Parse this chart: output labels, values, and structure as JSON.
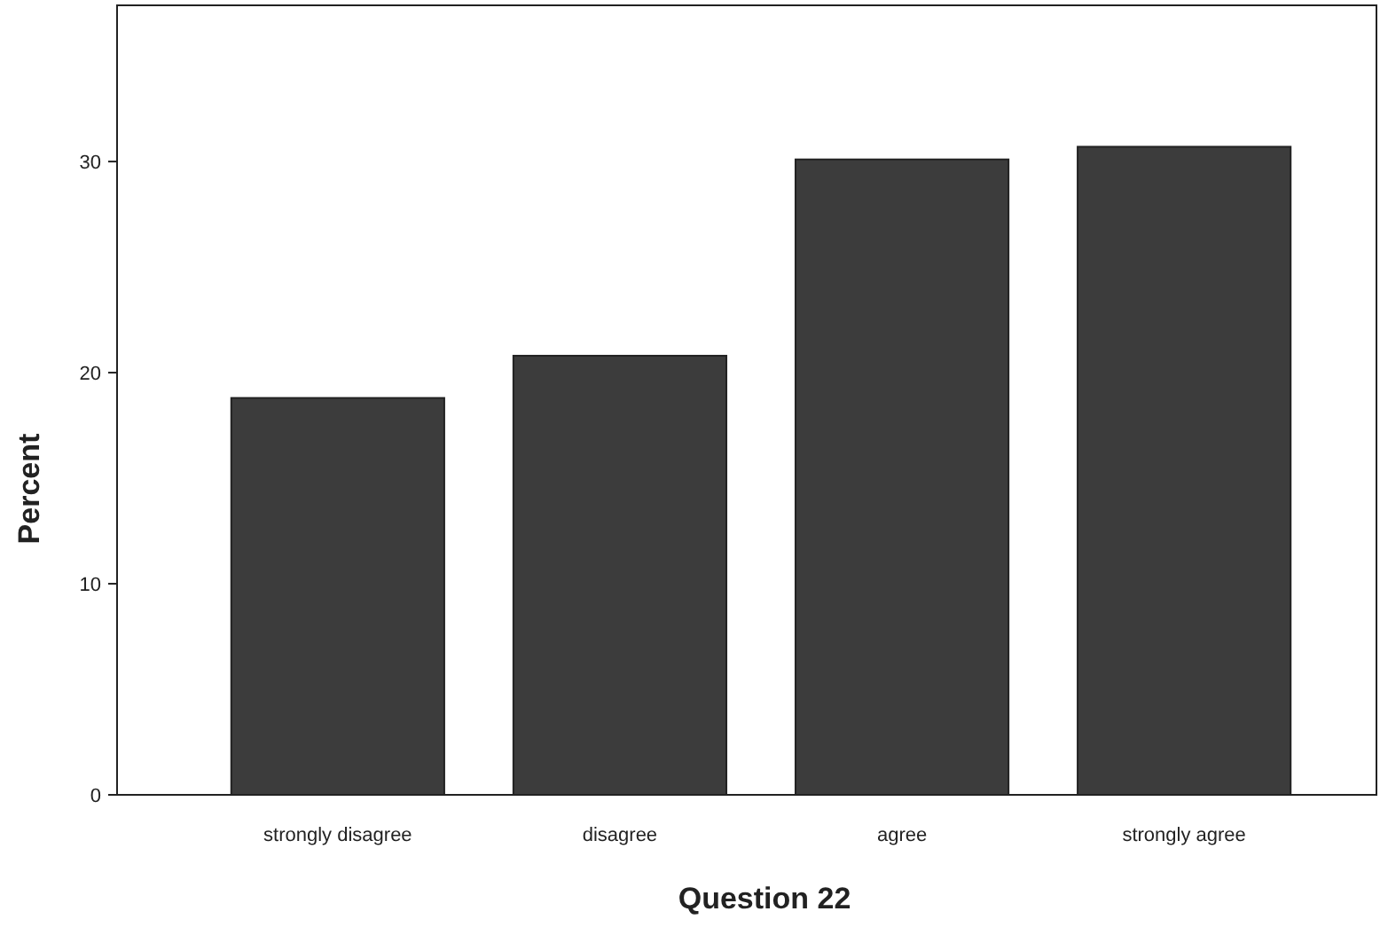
{
  "chart_data": {
    "type": "bar",
    "xlabel": "Question 22",
    "ylabel": "Percent",
    "categories": [
      "strongly disagree",
      "disagree",
      "agree",
      "strongly agree"
    ],
    "values": [
      18.8,
      20.8,
      30.1,
      30.7
    ],
    "color": "#3c3c3c",
    "ylim": [
      0,
      37.4
    ],
    "yticks": [
      0,
      10,
      20,
      30
    ],
    "grid": false
  }
}
